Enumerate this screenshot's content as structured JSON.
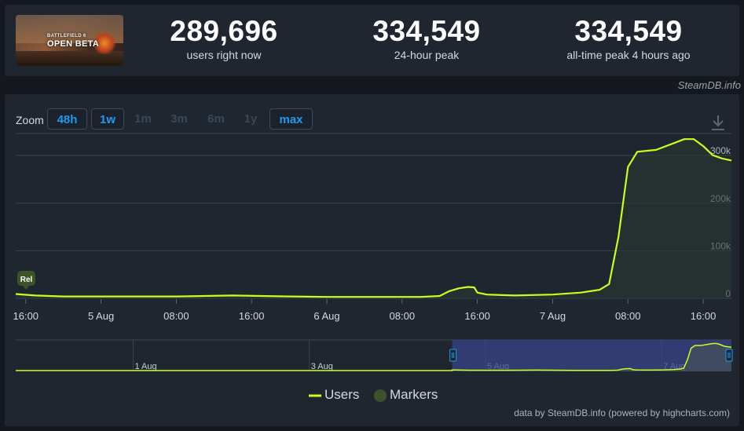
{
  "header": {
    "game_image_title": "OPEN BETA",
    "game_image_subtitle": "BATTLEFIELD 6",
    "stats": [
      {
        "value": "289,696",
        "label": "users right now"
      },
      {
        "value": "334,549",
        "label": "24-hour peak"
      },
      {
        "value": "334,549",
        "label": "all-time peak 4 hours ago"
      }
    ],
    "credit": "SteamDB.info"
  },
  "toolbar": {
    "zoom_label": "Zoom",
    "zoom_buttons": [
      {
        "label": "48h",
        "active": true
      },
      {
        "label": "1w",
        "active": true
      },
      {
        "label": "1m",
        "active": false
      },
      {
        "label": "3m",
        "active": false
      },
      {
        "label": "6m",
        "active": false
      },
      {
        "label": "1y",
        "active": false
      },
      {
        "label": "max",
        "active": true
      }
    ],
    "download_icon": "download-icon"
  },
  "chart_data": {
    "type": "line",
    "title": "",
    "xlabel": "",
    "ylabel": "",
    "ylim": [
      0,
      330000
    ],
    "y_ticks": [
      0,
      100000,
      200000,
      300000
    ],
    "y_tick_labels": [
      "0",
      "100k",
      "200k",
      "300k"
    ],
    "x_ticks": [
      "16:00",
      "5 Aug",
      "08:00",
      "16:00",
      "6 Aug",
      "08:00",
      "16:00",
      "7 Aug",
      "08:00",
      "16:00"
    ],
    "marker_label": "Rel",
    "series": [
      {
        "name": "Users",
        "color": "#c8ff1e",
        "points": [
          [
            "4 Aug 14:56",
            9000
          ],
          [
            "4 Aug 17:00",
            6000
          ],
          [
            "4 Aug 20:00",
            4000
          ],
          [
            "5 Aug 00:00",
            4000
          ],
          [
            "5 Aug 04:00",
            4000
          ],
          [
            "5 Aug 08:00",
            4000
          ],
          [
            "5 Aug 11:00",
            5000
          ],
          [
            "5 Aug 14:00",
            6000
          ],
          [
            "5 Aug 20:00",
            4000
          ],
          [
            "6 Aug 00:00",
            3000
          ],
          [
            "6 Aug 06:00",
            3000
          ],
          [
            "6 Aug 10:00",
            3000
          ],
          [
            "6 Aug 12:00",
            5000
          ],
          [
            "6 Aug 13:00",
            15000
          ],
          [
            "6 Aug 14:00",
            21000
          ],
          [
            "6 Aug 15:00",
            24000
          ],
          [
            "6 Aug 15:40",
            23000
          ],
          [
            "6 Aug 16:00",
            12000
          ],
          [
            "6 Aug 17:00",
            8000
          ],
          [
            "6 Aug 20:00",
            6000
          ],
          [
            "7 Aug 00:00",
            8000
          ],
          [
            "7 Aug 03:00",
            12000
          ],
          [
            "7 Aug 05:00",
            18000
          ],
          [
            "7 Aug 06:00",
            30000
          ],
          [
            "7 Aug 07:00",
            130000
          ],
          [
            "7 Aug 08:00",
            276000
          ],
          [
            "7 Aug 09:00",
            308000
          ],
          [
            "7 Aug 11:00",
            312000
          ],
          [
            "7 Aug 13:00",
            327000
          ],
          [
            "7 Aug 14:00",
            334549
          ],
          [
            "7 Aug 15:00",
            334549
          ],
          [
            "7 Aug 16:00",
            320000
          ],
          [
            "7 Aug 17:00",
            301000
          ],
          [
            "7 Aug 18:00",
            294000
          ],
          [
            "7 Aug 19:00",
            289696
          ]
        ]
      }
    ],
    "navigator": {
      "labels": [
        "1 Aug",
        "3 Aug",
        "5 Aug",
        "7 Aug"
      ]
    },
    "legend": {
      "position": "bottom-center",
      "items": [
        {
          "name": "Users",
          "color": "#c8ff1e"
        },
        {
          "name": "Markers",
          "color": "#3d5229"
        }
      ]
    },
    "credit": "data by SteamDB.info (powered by highcharts.com)"
  }
}
